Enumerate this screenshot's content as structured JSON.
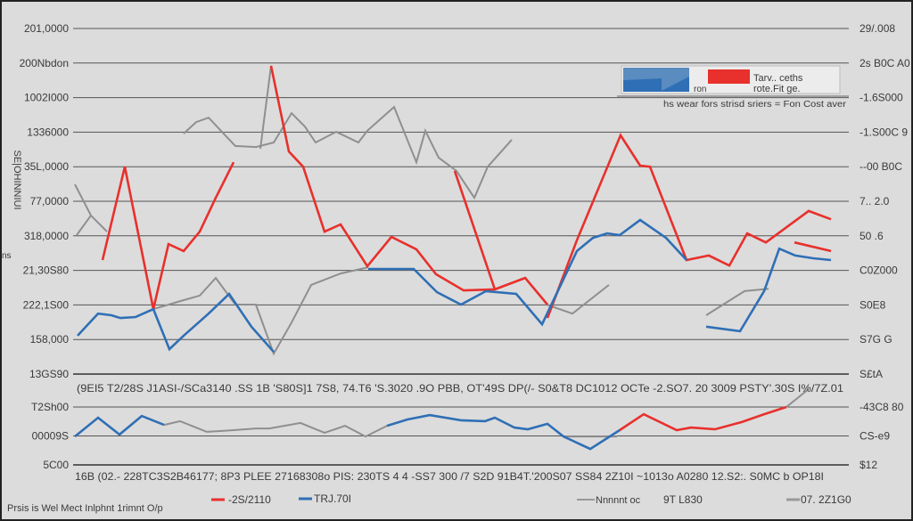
{
  "chart_data": {
    "type": "line",
    "title": "",
    "ylabel": "SE|OHINNIUI",
    "ylabel_small": "ns",
    "footer": "Prsis is Wel Mect Inlphnt 1rimnt O/p",
    "grid": true,
    "colors": {
      "red": "#e8302c",
      "blue": "#2f6fb5",
      "gray": "#8f8f8f",
      "background": "#dcdcdc"
    },
    "top_panel": {
      "ylim": [
        0,
        10
      ],
      "left_ticks": [
        "13GS90",
        "158,000",
        "222,1S00",
        "21,30S80",
        "318,0000",
        "77,0000",
        "35L,0000",
        "1336000",
        "1002I000",
        "200Nbdon",
        "201,0000"
      ],
      "right_ticks": [
        "S£tA",
        "S7G G",
        "S0E8",
        "C0Z000",
        "50 .6",
        "7.. 2.0",
        "--00 B0C",
        "-1.S00C 9",
        "-1.6S000",
        "2s B0C A0",
        "29/.008"
      ],
      "x_tick_text": "(9EI5 T2/28S J1ASI-/SCa3140 .SS 1B 'S80S]1 7S8, 74.T6 'S.3020 .9O PBB, OT'49S DP(/- S0&T8  DC1012 OCTe -2.SO7. 20 3009 PSTY'.30S I%/7Z.01",
      "series": [
        {
          "color": "red",
          "segments": [
            [
              [
                3.3,
                3.3
              ],
              [
                5.8,
                6.0
              ],
              [
                9.0,
                1.88
              ],
              [
                10.7,
                3.76
              ],
              [
                12.4,
                3.56
              ],
              [
                14.2,
                4.12
              ],
              [
                16.0,
                5.1
              ],
              [
                18.0,
                6.13
              ]
            ],
            [
              [
                22.2,
                8.92
              ],
              [
                24.2,
                6.44
              ],
              [
                25.8,
                6.0
              ],
              [
                28.2,
                4.12
              ],
              [
                30.0,
                4.33
              ],
              [
                33.0,
                3.12
              ],
              [
                35.7,
                3.97
              ],
              [
                38.5,
                3.61
              ],
              [
                40.7,
                2.89
              ],
              [
                43.8,
                2.42
              ],
              [
                47.3,
                2.45
              ],
              [
                50.7,
                2.78
              ],
              [
                53.2,
                2.01
              ]
            ],
            [
              [
                42.8,
                5.88
              ],
              [
                47.3,
                2.45
              ]
            ],
            [
              [
                53.2,
                1.62
              ],
              [
                56.5,
                3.87
              ],
              [
                61.4,
                6.91
              ],
              [
                63.6,
                6.03
              ],
              [
                64.7,
                6.0
              ],
              [
                68.8,
                3.3
              ],
              [
                71.3,
                3.43
              ],
              [
                73.6,
                3.14
              ],
              [
                75.6,
                4.07
              ],
              [
                77.7,
                3.81
              ],
              [
                82.5,
                4.72
              ],
              [
                85.0,
                4.48
              ]
            ],
            [
              [
                80.9,
                3.81
              ],
              [
                85.0,
                3.56
              ]
            ]
          ]
        },
        {
          "color": "blue",
          "segments": [
            [
              [
                0.5,
                1.11
              ],
              [
                2.8,
                1.75
              ],
              [
                4.3,
                1.7
              ],
              [
                5.3,
                1.62
              ],
              [
                7.0,
                1.65
              ],
              [
                9.0,
                1.88
              ],
              [
                10.8,
                0.72
              ],
              [
                12.4,
                1.11
              ],
              [
                15.2,
                1.75
              ],
              [
                17.5,
                2.32
              ],
              [
                20.0,
                1.37
              ],
              [
                22.5,
                0.64
              ]
            ],
            [
              [
                33.1,
                3.04
              ],
              [
                38.2,
                3.04
              ],
              [
                40.8,
                2.37
              ],
              [
                43.5,
                2.01
              ],
              [
                46.3,
                2.4
              ],
              [
                49.7,
                2.32
              ],
              [
                52.6,
                1.44
              ],
              [
                56.5,
                3.56
              ],
              [
                58.3,
                3.94
              ],
              [
                59.9,
                4.07
              ],
              [
                61.3,
                4.02
              ],
              [
                63.6,
                4.46
              ],
              [
                66.5,
                3.94
              ],
              [
                68.8,
                3.3
              ]
            ],
            [
              [
                71.0,
                1.37
              ],
              [
                74.8,
                1.24
              ],
              [
                77.5,
                2.4
              ],
              [
                79.2,
                3.63
              ],
              [
                81.0,
                3.43
              ],
              [
                83.0,
                3.35
              ],
              [
                85.0,
                3.3
              ]
            ]
          ]
        },
        {
          "color": "gray",
          "segments": [
            [
              [
                0.2,
                5.49
              ],
              [
                2.0,
                4.59
              ],
              [
                3.8,
                4.12
              ]
            ],
            [
              [
                0.4,
                4.02
              ],
              [
                2.0,
                4.59
              ]
            ],
            [
              [
                12.4,
                6.96
              ],
              [
                13.8,
                7.29
              ],
              [
                15.2,
                7.42
              ],
              [
                16.8,
                6.98
              ],
              [
                18.2,
                6.6
              ],
              [
                20.5,
                6.57
              ],
              [
                22.5,
                6.7
              ],
              [
                24.5,
                7.55
              ],
              [
                26.0,
                7.16
              ],
              [
                27.2,
                6.7
              ],
              [
                29.5,
                7.01
              ],
              [
                32.0,
                6.7
              ],
              [
                33.0,
                7.04
              ],
              [
                36.0,
                7.73
              ],
              [
                38.5,
                6.13
              ],
              [
                39.5,
                7.04
              ],
              [
                41.0,
                6.26
              ],
              [
                43.0,
                5.88
              ],
              [
                45.0,
                5.1
              ],
              [
                46.5,
                6.0
              ],
              [
                49.2,
                6.78
              ]
            ],
            [
              [
                21.0,
                6.52
              ],
              [
                22.2,
                8.92
              ],
              [
                23.8,
                6.91
              ]
            ],
            [
              [
                9.0,
                1.88
              ],
              [
                12.4,
                2.14
              ],
              [
                14.2,
                2.27
              ],
              [
                16.0,
                2.78
              ],
              [
                18.2,
                2.01
              ],
              [
                20.5,
                2.01
              ],
              [
                22.5,
                0.59
              ],
              [
                24.5,
                1.49
              ],
              [
                26.7,
                2.58
              ],
              [
                30.0,
                2.91
              ],
              [
                33.1,
                3.09
              ]
            ],
            [
              [
                53.1,
                2.01
              ],
              [
                56.0,
                1.75
              ],
              [
                60.1,
                2.58
              ]
            ],
            [
              [
                71.0,
                1.7
              ],
              [
                75.3,
                2.4
              ],
              [
                78.0,
                2.47
              ]
            ]
          ]
        }
      ]
    },
    "bottom_panel": {
      "ylim": [
        0,
        2
      ],
      "left_ticks": [
        "5C00",
        "00009S",
        "T2Sh00"
      ],
      "right_ticks": [
        "$12",
        "CS-e9",
        "-43C8 80"
      ],
      "x_tick_text": "16B (02.- 228TC3S2B46177; 8P3 PLEE 27168308o PIS: 230TS 4 4 -SS7 300 /7 S2D 91B4T.'200S07 SS84 2Z10I ~1013o A0280 12.S2:. S0MC b OP18I",
      "series": [
        {
          "color": "blue",
          "segments": [
            [
              [
                0.2,
                0.98
              ],
              [
                2.8,
                1.63
              ],
              [
                5.2,
                1.05
              ],
              [
                7.7,
                1.69
              ],
              [
                10.2,
                1.38
              ]
            ],
            [
              [
                35.2,
                1.35
              ],
              [
                37.5,
                1.57
              ],
              [
                40.0,
                1.72
              ],
              [
                43.5,
                1.54
              ],
              [
                46.2,
                1.51
              ],
              [
                47.3,
                1.63
              ],
              [
                49.5,
                1.29
              ],
              [
                51.0,
                1.23
              ],
              [
                53.2,
                1.42
              ],
              [
                55.0,
                0.98
              ],
              [
                58.0,
                0.55
              ],
              [
                61.3,
                1.2
              ]
            ]
          ]
        },
        {
          "color": "gray",
          "segments": [
            [
              [
                10.2,
                1.38
              ],
              [
                12.0,
                1.51
              ],
              [
                15.0,
                1.14
              ],
              [
                18.0,
                1.2
              ],
              [
                20.5,
                1.26
              ],
              [
                22.0,
                1.26
              ],
              [
                25.5,
                1.45
              ],
              [
                28.2,
                1.11
              ],
              [
                30.5,
                1.35
              ],
              [
                32.8,
                0.98
              ],
              [
                35.2,
                1.35
              ]
            ],
            [
              [
                55.2,
                0.98
              ],
              [
                61.0,
                0.98
              ]
            ],
            [
              [
                77.5,
                1.75
              ],
              [
                80.0,
                2.0
              ],
              [
                82.5,
                2.62
              ]
            ]
          ]
        },
        {
          "color": "red",
          "segments": [
            [
              [
                61.3,
                1.2
              ],
              [
                64.0,
                1.75
              ],
              [
                67.7,
                1.2
              ],
              [
                69.3,
                1.29
              ],
              [
                72.0,
                1.23
              ],
              [
                75.0,
                1.48
              ],
              [
                77.5,
                1.75
              ],
              [
                80.0,
                2.0
              ]
            ]
          ]
        }
      ]
    },
    "legend_top": {
      "line1": "Tarv.. ceths",
      "line2": "rote.Fit ge.",
      "small": "ron",
      "subtitle": "hs wear fors strisd sriers = Fon Cost aver"
    },
    "legend_bottom": [
      {
        "color": "red",
        "label": "-2S/2110"
      },
      {
        "color": "blue",
        "label": "TRJ.70I"
      },
      {
        "color": "gray",
        "label": "Nnnnnt oc"
      },
      {
        "color": "none",
        "label": "9T L830"
      },
      {
        "color": "gray",
        "label": "07. 2Z1G0"
      }
    ]
  }
}
